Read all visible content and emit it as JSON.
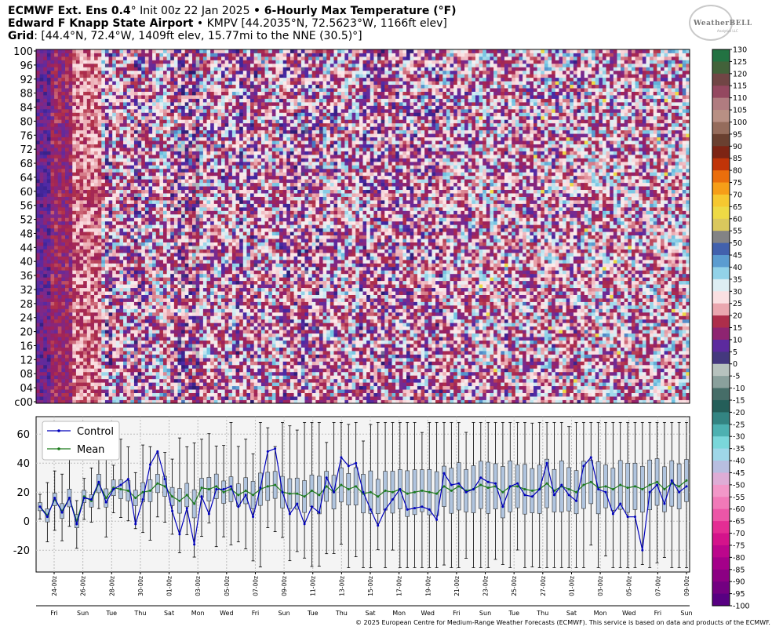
{
  "header": {
    "line1_bold_a": "ECMWF Ext.  Ens 0.4",
    "line1_deg": "°",
    "line1_init": " Init 00z 22 Jan 2025 ",
    "line1_dot": "•",
    "line1_bold_b": " 6-Hourly Max Temperature (°F)",
    "line2_bold": "Edward F Knapp State Airport",
    "line2_rest": " • KMPV [44.2035°N, 72.5623°W, 1166ft elev]",
    "line3_bold": "Grid",
    "line3_rest": ": [44.4°N, 72.4°W, 1409ft elev, 15.77mi to the NNE (30.5)°]"
  },
  "logo": {
    "text": "WeatherBELL",
    "sub": "Analytics LLC"
  },
  "footer": "© 2025 European Centre for Medium-Range Weather Forecasts (ECMWF). This service is based on data and products of the ECMWF.",
  "colors": {
    "control": "#0000bb",
    "mean": "#1a7a1a",
    "box_fill": "#b0c4de",
    "panel_bg": "#f4f4f4"
  },
  "chart_data": [
    {
      "type": "heatmap",
      "y_label_ticks": [
        "c00",
        "04",
        "08",
        "12",
        "16",
        "20",
        "24",
        "28",
        "32",
        "36",
        "40",
        "44",
        "48",
        "52",
        "56",
        "60",
        "64",
        "68",
        "72",
        "76",
        "80",
        "84",
        "88",
        "92",
        "96",
        "100"
      ],
      "members_per_row": 1,
      "n_members": 101,
      "n_steps": 180,
      "colorbar": {
        "ticks": [
          130,
          125,
          120,
          115,
          110,
          105,
          100,
          95,
          90,
          85,
          80,
          75,
          70,
          65,
          60,
          55,
          50,
          45,
          40,
          35,
          30,
          25,
          20,
          15,
          10,
          5,
          0,
          -5,
          -10,
          -15,
          -20,
          -25,
          -30,
          -35,
          -40,
          -45,
          -50,
          -55,
          -60,
          -65,
          -70,
          -75,
          -80,
          -85,
          -90,
          -95,
          -100
        ],
        "range": [
          -100,
          130
        ],
        "units": "°F"
      },
      "note": "member temperatures typically 0-40 F with warm 30s cells late in period"
    },
    {
      "type": "line",
      "ylim": [
        -35,
        72
      ],
      "yticks": [
        -20,
        0,
        20,
        40,
        60
      ],
      "grid": true,
      "legend": {
        "position": "top-left",
        "entries": [
          "Control",
          "Mean"
        ]
      },
      "x_date_labels": [
        "24-00z",
        "26-00z",
        "28-00z",
        "30-00z",
        "01-00z",
        "03-00z",
        "05-00z",
        "07-00z",
        "09-00z",
        "11-00z",
        "13-00z",
        "15-00z",
        "17-00z",
        "19-00z",
        "21-00z",
        "23-00z",
        "25-00z",
        "27-00z",
        "01-00z",
        "03-00z",
        "05-00z",
        "07-00z",
        "09-00z"
      ],
      "x_day_labels": [
        "Fri",
        "Sun",
        "Tue",
        "Thu",
        "Sat",
        "Mon",
        "Wed",
        "Fri",
        "Sun",
        "Tue",
        "Thu",
        "Sat",
        "Mon",
        "Wed",
        "Fri",
        "Sun",
        "Tue",
        "Thu",
        "Sat",
        "Mon",
        "Wed",
        "Fri",
        "Sun"
      ],
      "series": [
        {
          "name": "Control",
          "values": [
            10,
            3,
            16,
            6,
            16,
            -2,
            16,
            15,
            27,
            13,
            22,
            25,
            29,
            -2,
            15,
            39,
            48,
            29,
            7,
            -9,
            9,
            -16,
            17,
            5,
            22,
            22,
            24,
            10,
            18,
            3,
            23,
            48,
            50,
            20,
            5,
            12,
            -2,
            10,
            6,
            30,
            20,
            44,
            38,
            40,
            20,
            8,
            -3,
            8,
            15,
            22,
            8,
            9,
            10,
            8,
            1,
            33,
            25,
            26,
            20,
            22,
            30,
            27,
            26,
            10,
            24,
            26,
            18,
            17,
            22,
            40,
            18,
            25,
            18,
            14,
            38,
            44,
            22,
            20,
            5,
            12,
            3,
            3,
            -20,
            20,
            25,
            12,
            28,
            20,
            24
          ]
        },
        {
          "name": "Mean",
          "values": [
            10,
            4,
            15,
            7,
            16,
            0,
            17,
            14,
            26,
            16,
            23,
            22,
            21,
            16,
            20,
            21,
            26,
            24,
            17,
            14,
            18,
            12,
            23,
            22,
            24,
            20,
            22,
            18,
            21,
            18,
            22,
            24,
            25,
            20,
            19,
            19,
            17,
            21,
            18,
            24,
            20,
            25,
            22,
            24,
            19,
            20,
            17,
            21,
            20,
            22,
            19,
            20,
            21,
            20,
            19,
            24,
            21,
            24,
            21,
            22,
            25,
            23,
            24,
            20,
            24,
            24,
            22,
            21,
            22,
            26,
            21,
            24,
            22,
            20,
            25,
            27,
            23,
            24,
            22,
            25,
            23,
            24,
            22,
            25,
            27,
            22,
            26,
            24,
            28
          ]
        }
      ],
      "boxes_note": "ensemble box-and-whisker per 6-hourly step; medians near 15-30, whiskers roughly -30 to 66"
    }
  ]
}
